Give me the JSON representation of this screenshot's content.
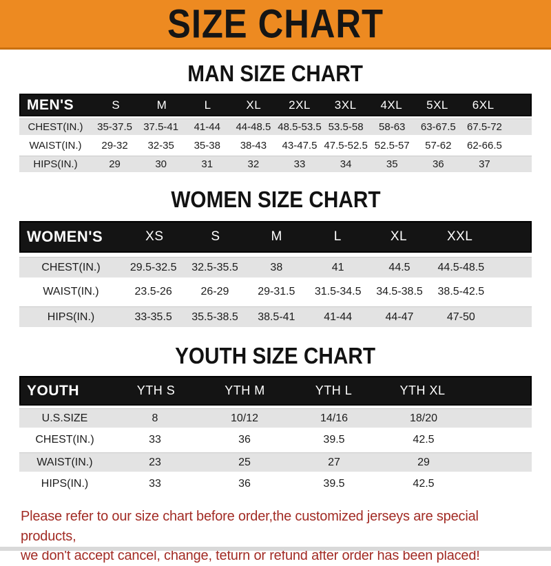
{
  "banner": {
    "title": "SIZE CHART"
  },
  "colors": {
    "accent_orange": "#ED8A21",
    "band_black": "#141414",
    "row_gray": "#E3E3E3",
    "footer_red": "#A22B24"
  },
  "sections": [
    {
      "title": "MAN SIZE CHART",
      "header_label": "MEN'S",
      "sizes": [
        "S",
        "M",
        "L",
        "XL",
        "2XL",
        "3XL",
        "4XL",
        "5XL",
        "6XL"
      ],
      "rows": [
        {
          "label": "CHEST(IN.)",
          "values": [
            "35-37.5",
            "37.5-41",
            "41-44",
            "44-48.5",
            "48.5-53.5",
            "53.5-58",
            "58-63",
            "63-67.5",
            "67.5-72"
          ]
        },
        {
          "label": "WAIST(IN.)",
          "values": [
            "29-32",
            "32-35",
            "35-38",
            "38-43",
            "43-47.5",
            "47.5-52.5",
            "52.5-57",
            "57-62",
            "62-66.5"
          ]
        },
        {
          "label": "HIPS(IN.)",
          "values": [
            "29",
            "30",
            "31",
            "32",
            "33",
            "34",
            "35",
            "36",
            "37"
          ]
        }
      ]
    },
    {
      "title": "WOMEN SIZE CHART",
      "header_label": "WOMEN'S",
      "sizes": [
        "XS",
        "S",
        "M",
        "L",
        "XL",
        "XXL"
      ],
      "rows": [
        {
          "label": "CHEST(IN.)",
          "values": [
            "29.5-32.5",
            "32.5-35.5",
            "38",
            "41",
            "44.5",
            "44.5-48.5"
          ]
        },
        {
          "label": "WAIST(IN.)",
          "values": [
            "23.5-26",
            "26-29",
            "29-31.5",
            "31.5-34.5",
            "34.5-38.5",
            "38.5-42.5"
          ]
        },
        {
          "label": "HIPS(IN.)",
          "values": [
            "33-35.5",
            "35.5-38.5",
            "38.5-41",
            "41-44",
            "44-47",
            "47-50"
          ]
        }
      ]
    },
    {
      "title": "YOUTH SIZE CHART",
      "header_label": "YOUTH",
      "sizes": [
        "YTH S",
        "YTH M",
        "YTH L",
        "YTH XL"
      ],
      "rows": [
        {
          "label": "U.S.SIZE",
          "values": [
            "8",
            "10/12",
            "14/16",
            "18/20"
          ]
        },
        {
          "label": "CHEST(IN.)",
          "values": [
            "33",
            "36",
            "39.5",
            "42.5"
          ]
        },
        {
          "label": "WAIST(IN.)",
          "values": [
            "23",
            "25",
            "27",
            "29"
          ]
        },
        {
          "label": "HIPS(IN.)",
          "values": [
            "33",
            "36",
            "39.5",
            "42.5"
          ]
        }
      ]
    }
  ],
  "footer": {
    "line1": "Please refer to our size chart before order,the customized jerseys are special products,",
    "line2": "we don't accept cancel, change, teturn or refund after order has been placed!"
  },
  "chart_data": [
    {
      "type": "table",
      "title": "MAN SIZE CHART",
      "columns": [
        "MEN'S",
        "S",
        "M",
        "L",
        "XL",
        "2XL",
        "3XL",
        "4XL",
        "5XL",
        "6XL"
      ],
      "rows": [
        [
          "CHEST(IN.)",
          "35-37.5",
          "37.5-41",
          "41-44",
          "44-48.5",
          "48.5-53.5",
          "53.5-58",
          "58-63",
          "63-67.5",
          "67.5-72"
        ],
        [
          "WAIST(IN.)",
          "29-32",
          "32-35",
          "35-38",
          "38-43",
          "43-47.5",
          "47.5-52.5",
          "52.5-57",
          "57-62",
          "62-66.5"
        ],
        [
          "HIPS(IN.)",
          "29",
          "30",
          "31",
          "32",
          "33",
          "34",
          "35",
          "36",
          "37"
        ]
      ]
    },
    {
      "type": "table",
      "title": "WOMEN SIZE CHART",
      "columns": [
        "WOMEN'S",
        "XS",
        "S",
        "M",
        "L",
        "XL",
        "XXL"
      ],
      "rows": [
        [
          "CHEST(IN.)",
          "29.5-32.5",
          "32.5-35.5",
          "38",
          "41",
          "44.5",
          "44.5-48.5"
        ],
        [
          "WAIST(IN.)",
          "23.5-26",
          "26-29",
          "29-31.5",
          "31.5-34.5",
          "34.5-38.5",
          "38.5-42.5"
        ],
        [
          "HIPS(IN.)",
          "33-35.5",
          "35.5-38.5",
          "38.5-41",
          "41-44",
          "44-47",
          "47-50"
        ]
      ]
    },
    {
      "type": "table",
      "title": "YOUTH SIZE CHART",
      "columns": [
        "YOUTH",
        "YTH S",
        "YTH M",
        "YTH L",
        "YTH XL"
      ],
      "rows": [
        [
          "U.S.SIZE",
          "8",
          "10/12",
          "14/16",
          "18/20"
        ],
        [
          "CHEST(IN.)",
          "33",
          "36",
          "39.5",
          "42.5"
        ],
        [
          "WAIST(IN.)",
          "23",
          "25",
          "27",
          "29"
        ],
        [
          "HIPS(IN.)",
          "33",
          "36",
          "39.5",
          "42.5"
        ]
      ]
    }
  ]
}
